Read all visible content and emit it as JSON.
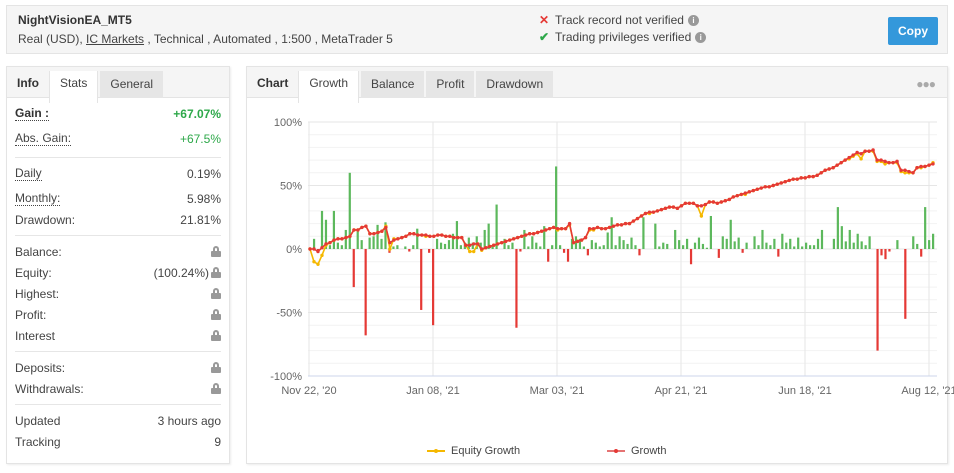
{
  "header": {
    "system_name": "NightVisionEA_MT5",
    "desc_prefix": "Real (USD), ",
    "broker": "IC Markets",
    "desc_suffix": " , Technical , Automated , 1:500 , MetaTrader 5",
    "verification": [
      {
        "status": "fail",
        "icon": "x-icon",
        "text": "Track record not verified",
        "color": "#e53935"
      },
      {
        "status": "ok",
        "icon": "check-icon",
        "text": "Trading privileges verified",
        "color": "#2ea84a"
      }
    ],
    "copy_label": "Copy",
    "copy_color": "#3498db"
  },
  "left_tabs": [
    "Info",
    "Stats",
    "General"
  ],
  "stats": {
    "gain": {
      "label": "Gain :",
      "value": "+67.07%"
    },
    "abs_gain": {
      "label": "Abs. Gain:",
      "value": "+67.5%"
    },
    "daily": {
      "label": "Daily",
      "value": "0.19%"
    },
    "monthly": {
      "label": "Monthly:",
      "value": "5.98%"
    },
    "drawdown": {
      "label": "Drawdown:",
      "value": "21.81%"
    },
    "balance": {
      "label": "Balance:"
    },
    "equity": {
      "label": "Equity:",
      "value": "(100.24%)"
    },
    "highest": {
      "label": "Highest:"
    },
    "profit": {
      "label": "Profit:"
    },
    "interest": {
      "label": "Interest"
    },
    "deposits": {
      "label": "Deposits:"
    },
    "withdrawals": {
      "label": "Withdrawals:"
    },
    "updated": {
      "label": "Updated",
      "value": "3 hours ago"
    },
    "tracking": {
      "label": "Tracking",
      "value": "9"
    }
  },
  "chart_tabs": [
    "Chart",
    "Growth",
    "Balance",
    "Profit",
    "Drawdown"
  ],
  "chart_data": {
    "type": "line",
    "title": "",
    "xlabel": "",
    "ylabel": "",
    "ylim": [
      -100,
      100
    ],
    "y_ticks": [
      "100%",
      "50%",
      "0%",
      "-50%",
      "-100%"
    ],
    "x_ticks": [
      "Nov 22, '20",
      "Jan 08, '21",
      "Mar 03, '21",
      "Apr 21, '21",
      "Jun 18, '21",
      "Aug 12, '21"
    ],
    "grid": true,
    "legend_position": "bottom",
    "legend": [
      "Equity Growth",
      "Growth"
    ],
    "series": [
      {
        "name": "Growth",
        "color": "#e53935",
        "values": [
          0,
          0,
          -2,
          1,
          4,
          5,
          7,
          8,
          8,
          9,
          10,
          15,
          15,
          17,
          18,
          12,
          12,
          13,
          14,
          17,
          5,
          7,
          8,
          9,
          10,
          12,
          12,
          11,
          11,
          11,
          10,
          10,
          11,
          11,
          10,
          10,
          9,
          9,
          9,
          3,
          3,
          4,
          4,
          0,
          1,
          2,
          3,
          4,
          5,
          6,
          7,
          8,
          9,
          10,
          11,
          12,
          12,
          13,
          14,
          15,
          16,
          17,
          16,
          16,
          16,
          20,
          5,
          6,
          7,
          9,
          16,
          16,
          17,
          16,
          16,
          17,
          18,
          19,
          19,
          20,
          20,
          22,
          24,
          26,
          28,
          29,
          29,
          30,
          31,
          32,
          33,
          33,
          32,
          34,
          36,
          36,
          36,
          34,
          34,
          35,
          37,
          37,
          36,
          37,
          38,
          39,
          41,
          42,
          43,
          44,
          45,
          46,
          47,
          48,
          49,
          49,
          50,
          51,
          52,
          53,
          54,
          55,
          55,
          56,
          56,
          57,
          57,
          58,
          60,
          62,
          63,
          64,
          66,
          68,
          70,
          72,
          74,
          76,
          75,
          77,
          77,
          78,
          70,
          70,
          69,
          68,
          68,
          69,
          62,
          62,
          61,
          60,
          64,
          65,
          65,
          66,
          67
        ]
      },
      {
        "name": "Equity Growth",
        "color": "#f5b800",
        "values": [
          0,
          -10,
          -12,
          -5,
          3,
          5,
          7,
          8,
          8,
          9,
          10,
          15,
          15,
          17,
          18,
          12,
          12,
          13,
          14,
          18,
          0,
          8,
          8,
          9,
          10,
          12,
          12,
          11,
          11,
          10,
          10,
          10,
          11,
          11,
          10,
          10,
          9,
          9,
          9,
          3,
          -2,
          -2,
          4,
          -1,
          1,
          2,
          3,
          4,
          5,
          6,
          7,
          8,
          9,
          10,
          11,
          12,
          12,
          13,
          14,
          15,
          16,
          17,
          15,
          16,
          16,
          19,
          5,
          6,
          7,
          9,
          15,
          15,
          17,
          16,
          16,
          17,
          18,
          19,
          19,
          20,
          20,
          22,
          24,
          26,
          28,
          28,
          29,
          30,
          31,
          32,
          33,
          33,
          32,
          34,
          36,
          36,
          36,
          34,
          26,
          35,
          37,
          37,
          36,
          37,
          38,
          39,
          41,
          42,
          43,
          43,
          45,
          46,
          47,
          48,
          49,
          49,
          50,
          51,
          52,
          53,
          54,
          55,
          55,
          56,
          56,
          57,
          57,
          58,
          60,
          62,
          63,
          64,
          66,
          68,
          70,
          71,
          73,
          75,
          71,
          77,
          77,
          77,
          69,
          69,
          67,
          68,
          68,
          68,
          61,
          60,
          60,
          60,
          64,
          64,
          65,
          66,
          68
        ]
      },
      {
        "name": "Daily bars (positive green / negative red)",
        "color_pos": "#5cb85c",
        "color_neg": "#e53935",
        "values": [
          0,
          8,
          -3,
          30,
          23,
          3,
          30,
          5,
          3,
          15,
          60,
          -30,
          16,
          7,
          -68,
          9,
          10,
          19,
          8,
          21,
          -3,
          2,
          3,
          0,
          2,
          -2,
          3,
          16,
          -48,
          0,
          -3,
          -60,
          8,
          5,
          4,
          7,
          12,
          22,
          3,
          5,
          9,
          5,
          10,
          5,
          15,
          20,
          3,
          35,
          0,
          8,
          3,
          5,
          -62,
          -2,
          15,
          2,
          10,
          5,
          2,
          18,
          -10,
          3,
          65,
          3,
          -3,
          -10,
          8,
          10,
          8,
          2,
          -5,
          7,
          5,
          2,
          3,
          13,
          25,
          3,
          10,
          7,
          4,
          9,
          3,
          -5,
          25,
          0,
          0,
          20,
          2,
          5,
          4,
          0,
          15,
          7,
          3,
          8,
          -12,
          5,
          9,
          4,
          1,
          26,
          0,
          -7,
          10,
          8,
          23,
          6,
          9,
          -3,
          5,
          0,
          10,
          3,
          15,
          5,
          3,
          8,
          -6,
          12,
          5,
          8,
          2,
          9,
          2,
          5,
          3,
          3,
          8,
          15,
          0,
          0,
          8,
          33,
          18,
          6,
          15,
          5,
          12,
          6,
          3,
          10,
          0,
          -80,
          -5,
          -8,
          -2,
          0,
          7,
          0,
          -55,
          0,
          10,
          4,
          -6,
          33,
          7,
          12
        ]
      }
    ]
  }
}
